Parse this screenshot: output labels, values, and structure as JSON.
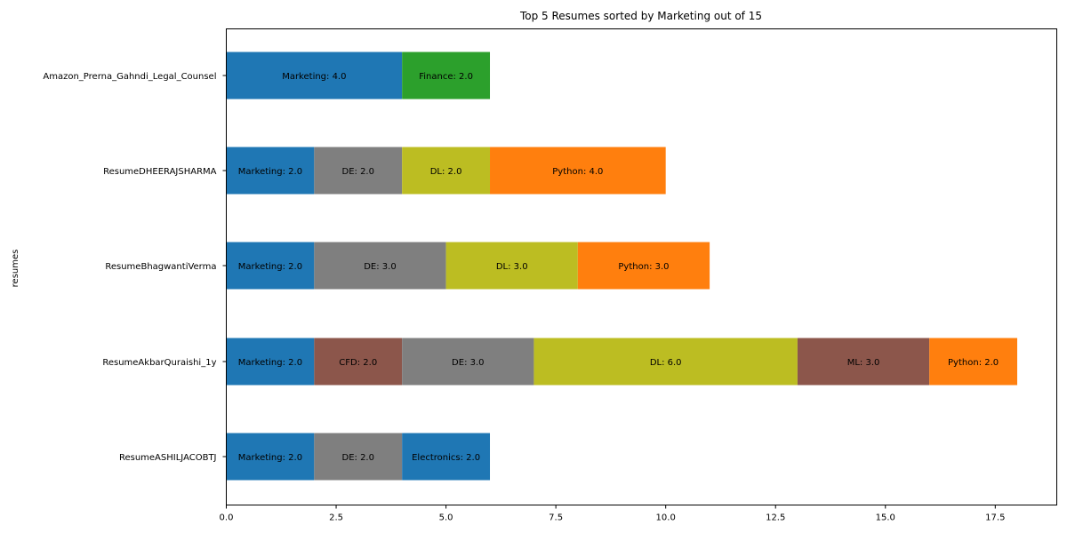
{
  "chart_data": {
    "type": "bar",
    "orientation": "horizontal",
    "stacked": true,
    "title": "Top 5 Resumes sorted by Marketing out of 15",
    "xlabel": "",
    "ylabel": "resumes",
    "xlim": [
      0,
      18.9
    ],
    "xticks": [
      "0.0",
      "2.5",
      "5.0",
      "7.5",
      "10.0",
      "12.5",
      "15.0",
      "17.5"
    ],
    "grid": false,
    "legend": "none",
    "categories": [
      "Amazon_Prerna_Gahndi_Legal_Counsel",
      "ResumeDHEERAJSHARMA",
      "ResumeBhagwantiVerma",
      "ResumeAkbarQuraishi_1y",
      "ResumeASHILJACOBTJ"
    ],
    "rows": [
      {
        "resume": "Amazon_Prerna_Gahndi_Legal_Counsel",
        "segments": [
          {
            "skill": "Marketing",
            "value": 4.0,
            "label": "Marketing: 4.0",
            "color": "#1f77b4"
          },
          {
            "skill": "Finance",
            "value": 2.0,
            "label": "Finance: 2.0",
            "color": "#2ca02c"
          }
        ]
      },
      {
        "resume": "ResumeDHEERAJSHARMA",
        "segments": [
          {
            "skill": "Marketing",
            "value": 2.0,
            "label": "Marketing: 2.0",
            "color": "#1f77b4"
          },
          {
            "skill": "DE",
            "value": 2.0,
            "label": "DE: 2.0",
            "color": "#7f7f7f"
          },
          {
            "skill": "DL",
            "value": 2.0,
            "label": "DL: 2.0",
            "color": "#bcbd22"
          },
          {
            "skill": "Python",
            "value": 4.0,
            "label": "Python: 4.0",
            "color": "#ff7f0e"
          }
        ]
      },
      {
        "resume": "ResumeBhagwantiVerma",
        "segments": [
          {
            "skill": "Marketing",
            "value": 2.0,
            "label": "Marketing: 2.0",
            "color": "#1f77b4"
          },
          {
            "skill": "DE",
            "value": 3.0,
            "label": "DE: 3.0",
            "color": "#7f7f7f"
          },
          {
            "skill": "DL",
            "value": 3.0,
            "label": "DL: 3.0",
            "color": "#bcbd22"
          },
          {
            "skill": "Python",
            "value": 3.0,
            "label": "Python: 3.0",
            "color": "#ff7f0e"
          }
        ]
      },
      {
        "resume": "ResumeAkbarQuraishi_1y",
        "segments": [
          {
            "skill": "Marketing",
            "value": 2.0,
            "label": "Marketing: 2.0",
            "color": "#1f77b4"
          },
          {
            "skill": "CFD",
            "value": 2.0,
            "label": "CFD: 2.0",
            "color": "#8c564b"
          },
          {
            "skill": "DE",
            "value": 3.0,
            "label": "DE: 3.0",
            "color": "#7f7f7f"
          },
          {
            "skill": "DL",
            "value": 6.0,
            "label": "DL: 6.0",
            "color": "#bcbd22"
          },
          {
            "skill": "ML",
            "value": 3.0,
            "label": "ML: 3.0",
            "color": "#8c564b"
          },
          {
            "skill": "Python",
            "value": 2.0,
            "label": "Python: 2.0",
            "color": "#ff7f0e"
          }
        ]
      },
      {
        "resume": "ResumeASHILJACOBTJ",
        "segments": [
          {
            "skill": "Marketing",
            "value": 2.0,
            "label": "Marketing: 2.0",
            "color": "#1f77b4"
          },
          {
            "skill": "DE",
            "value": 2.0,
            "label": "DE: 2.0",
            "color": "#7f7f7f"
          },
          {
            "skill": "Electronics",
            "value": 2.0,
            "label": "Electronics: 2.0",
            "color": "#1f77b4"
          }
        ]
      }
    ]
  }
}
